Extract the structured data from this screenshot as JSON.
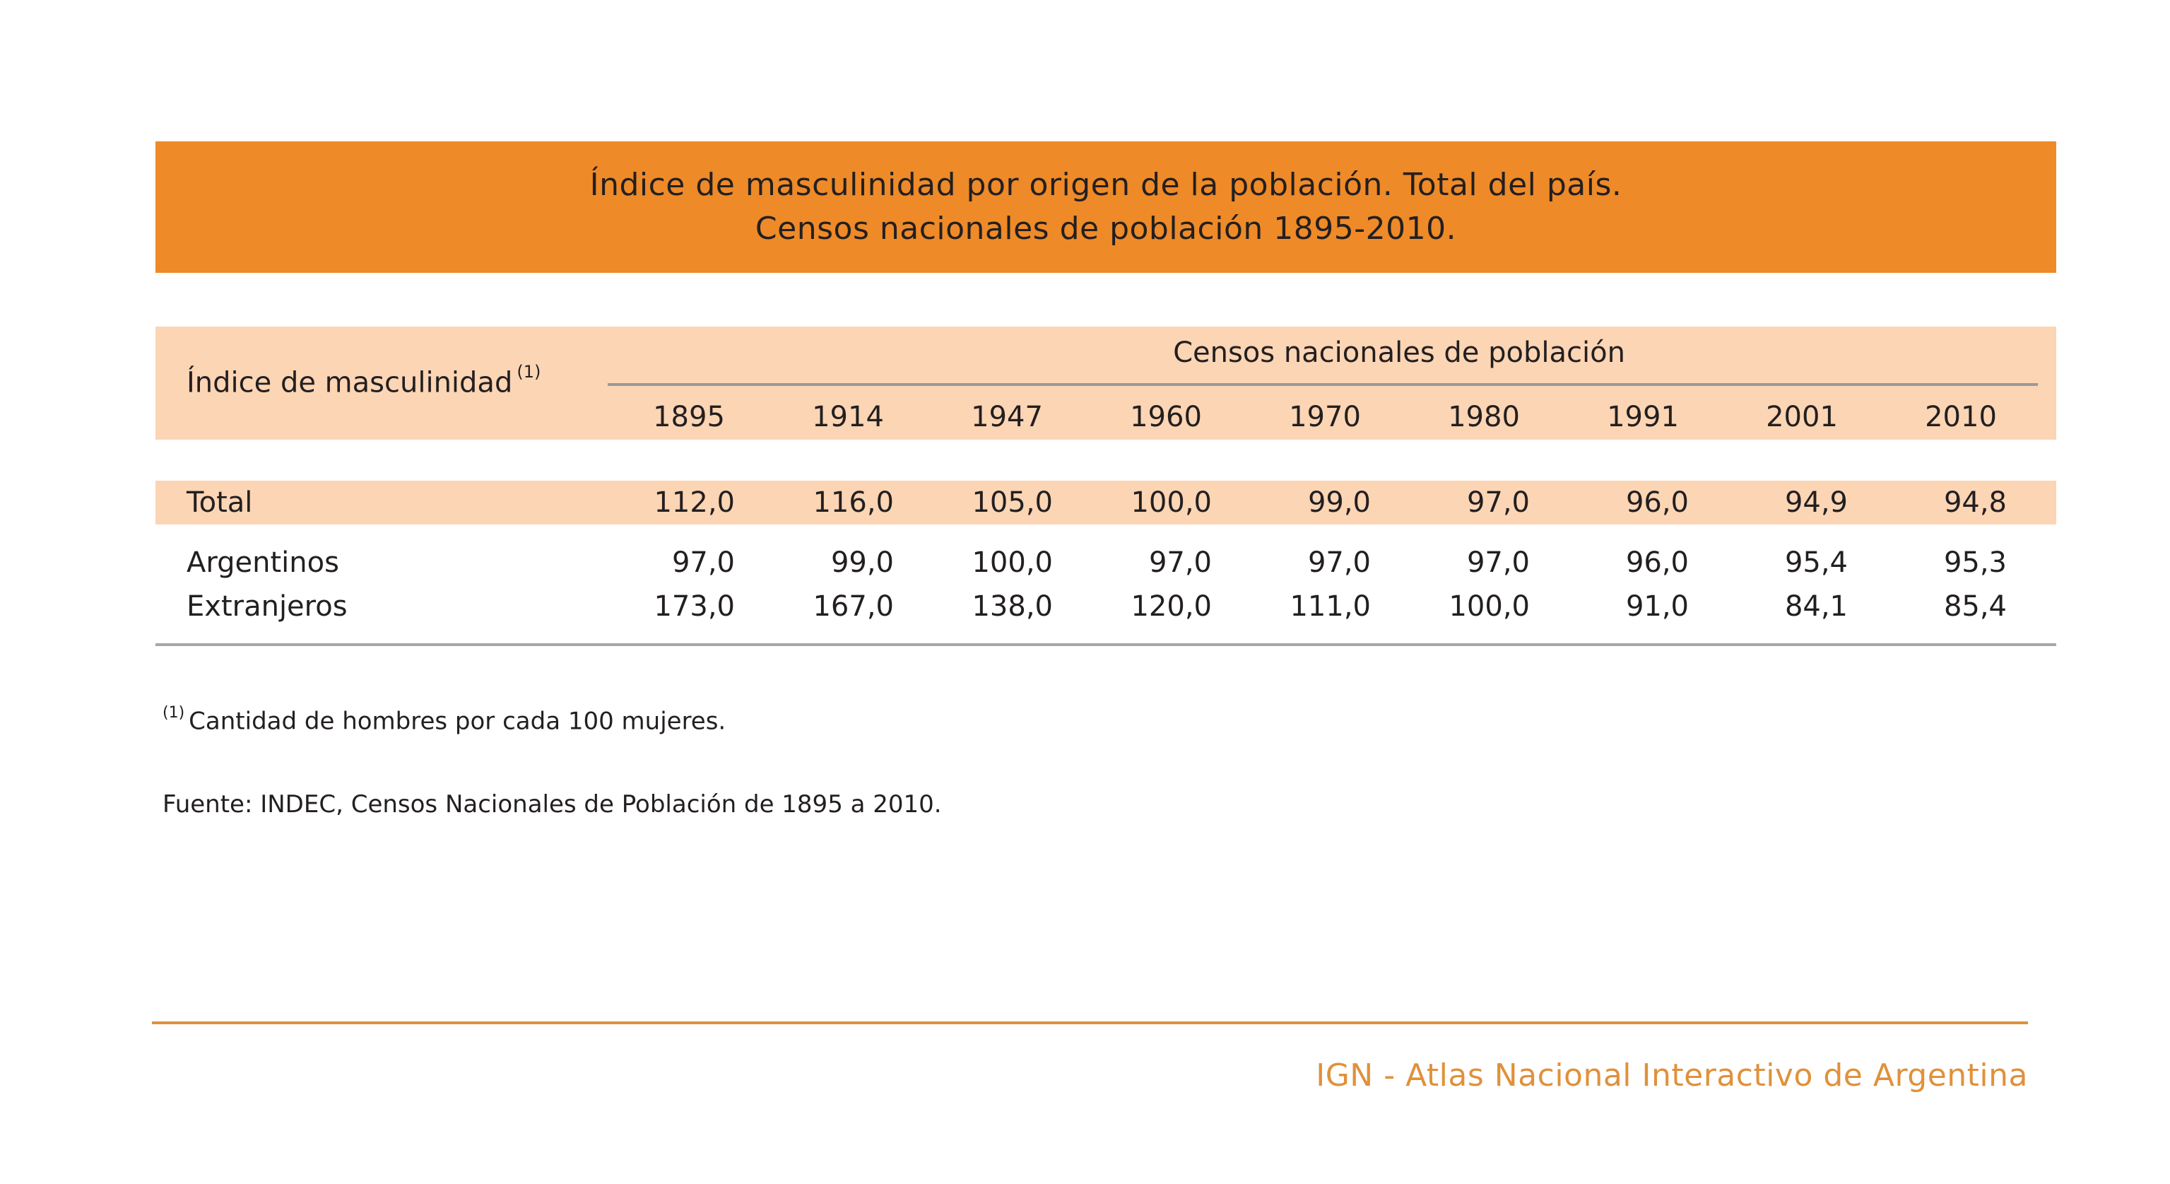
{
  "title": {
    "line1": "Índice de masculinidad por origen de la población. Total del país.",
    "line2": "Censos nacionales de población 1895-2010."
  },
  "table": {
    "row_header": "Índice de masculinidad",
    "row_header_note": "(1)",
    "group_header": "Censos nacionales de población",
    "years": [
      "1895",
      "1914",
      "1947",
      "1960",
      "1970",
      "1980",
      "1991",
      "2001",
      "2010"
    ],
    "rows": [
      {
        "label": "Total",
        "values": [
          "112,0",
          "116,0",
          "105,0",
          "100,0",
          "99,0",
          "97,0",
          "96,0",
          "94,9",
          "94,8"
        ]
      },
      {
        "label": "Argentinos",
        "values": [
          "97,0",
          "99,0",
          "100,0",
          "97,0",
          "97,0",
          "97,0",
          "96,0",
          "95,4",
          "95,3"
        ]
      },
      {
        "label": "Extranjeros",
        "values": [
          "173,0",
          "167,0",
          "138,0",
          "120,0",
          "111,0",
          "100,0",
          "91,0",
          "84,1",
          "85,4"
        ]
      }
    ]
  },
  "note": {
    "marker": "(1)",
    "text": "Cantidad de hombres por cada 100 mujeres."
  },
  "source": "Fuente: INDEC, Censos Nacionales de Población de 1895 a 2010.",
  "footer": "IGN - Atlas Nacional Interactivo de Argentina",
  "colors": {
    "title_band": "#ee8a28",
    "header_band": "#fcd5b4",
    "footer_accent": "#e0913b"
  }
}
